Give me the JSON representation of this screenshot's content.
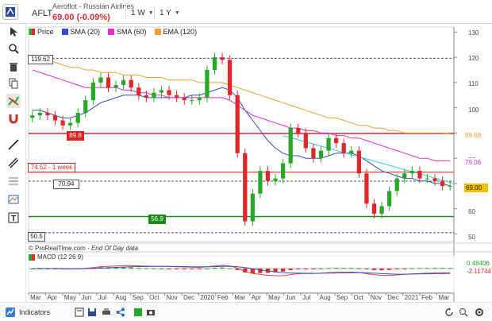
{
  "header": {
    "symbol": "AFLT",
    "name": "Aeroflot - Russian Airlines",
    "price": "69.00 (-0.09%)",
    "interval": "1 W",
    "period": "1 Y"
  },
  "legend": [
    {
      "label": "Price",
      "color": "#e03030"
    },
    {
      "label": "SMA (20)",
      "color": "#3050d0"
    },
    {
      "label": "SMA (60)",
      "color": "#e030d0"
    },
    {
      "label": "EMA (120)",
      "color": "#f0a030"
    }
  ],
  "price_axis": [
    "130",
    "120",
    "110",
    "100",
    "90",
    "80",
    "70",
    "60",
    "50"
  ],
  "level_tags": {
    "l119": "119.62",
    "l898": "89.8",
    "l7452": "74.52 - 1 week",
    "l7094": "70.94",
    "l569": "56.9",
    "l505": "50.5",
    "r8968": "89.68",
    "r7906": "79.06",
    "r6900": "69.00"
  },
  "footer": {
    "source": "© ProRealTime.com",
    "sep": " - ",
    "note": "End Of Day data"
  },
  "macd": {
    "label": "MACD (12 26 9)",
    "v1": "0.48406",
    "v2": "-2.11744"
  },
  "x_axis": [
    "Mar",
    "Apr",
    "May",
    "Jun",
    "Jul",
    "Aug",
    "Sep",
    "Oct",
    "Nov",
    "Dec",
    "2020",
    "Feb",
    "Mar",
    "Apr",
    "May",
    "Jun",
    "Jul",
    "Aug",
    "Sep",
    "Oct",
    "Nov",
    "Dec",
    "2021",
    "Feb",
    "Mar"
  ],
  "bottom": {
    "indicators": "Indicators"
  },
  "colors": {
    "up": "#28a828",
    "down": "#e02828",
    "sma20": "#3050d0",
    "sma60": "#e030d0",
    "ema120": "#f0a030",
    "cyan": "#30c8e8"
  },
  "chart_data": {
    "type": "candlestick",
    "ylim": [
      47,
      132
    ],
    "series": [
      {
        "name": "Price",
        "values": [
          97,
          98,
          97,
          95,
          93,
          94,
          98,
          103,
          110,
          112,
          108,
          109,
          111,
          108,
          105,
          104,
          106,
          107,
          105,
          104,
          103,
          103,
          104,
          115,
          120,
          119,
          105,
          82,
          55,
          66,
          75,
          71,
          72,
          78,
          92,
          90,
          84,
          80,
          83,
          88,
          86,
          82,
          83,
          74,
          62,
          58,
          61,
          67,
          72,
          74,
          75,
          72,
          72,
          71,
          69,
          69
        ]
      },
      {
        "name": "SMA (20)",
        "values": [
          99,
          99,
          98,
          97,
          96,
          96,
          97,
          98,
          100,
          102,
          103,
          104,
          105,
          105,
          105,
          104,
          104,
          104,
          104,
          104,
          104,
          105,
          105,
          106,
          107,
          108,
          107,
          104,
          99,
          95,
          91,
          87,
          84,
          82,
          81,
          81,
          80,
          80,
          80,
          81,
          82,
          82,
          82,
          81,
          79,
          77,
          75,
          74,
          73,
          72,
          72,
          71,
          71,
          70,
          70,
          69
        ]
      },
      {
        "name": "SMA (60)",
        "values": [
          115,
          114,
          113,
          112,
          111,
          110,
          109,
          108,
          108,
          108,
          108,
          108,
          107,
          107,
          106,
          106,
          105,
          105,
          104,
          104,
          104,
          104,
          104,
          104,
          104,
          104,
          103,
          101,
          99,
          97,
          96,
          95,
          94,
          93,
          92,
          92,
          91,
          91,
          90,
          90,
          89,
          89,
          88,
          88,
          87,
          86,
          85,
          84,
          83,
          82,
          81,
          80,
          80,
          79,
          79,
          79
        ]
      },
      {
        "name": "EMA (120)",
        "values": [
          121,
          120,
          119,
          118,
          117,
          116,
          116,
          115,
          115,
          114,
          114,
          114,
          113,
          113,
          113,
          112,
          112,
          112,
          111,
          111,
          111,
          111,
          110,
          110,
          110,
          110,
          109,
          108,
          107,
          106,
          105,
          104,
          103,
          102,
          101,
          100,
          99,
          98,
          97,
          96,
          96,
          95,
          94,
          93,
          93,
          92,
          92,
          91,
          91,
          90,
          90,
          90,
          90,
          90,
          90,
          89.7
        ]
      }
    ],
    "levels": [
      119.62,
      89.8,
      74.52,
      70.94,
      56.9,
      50.5
    ]
  }
}
